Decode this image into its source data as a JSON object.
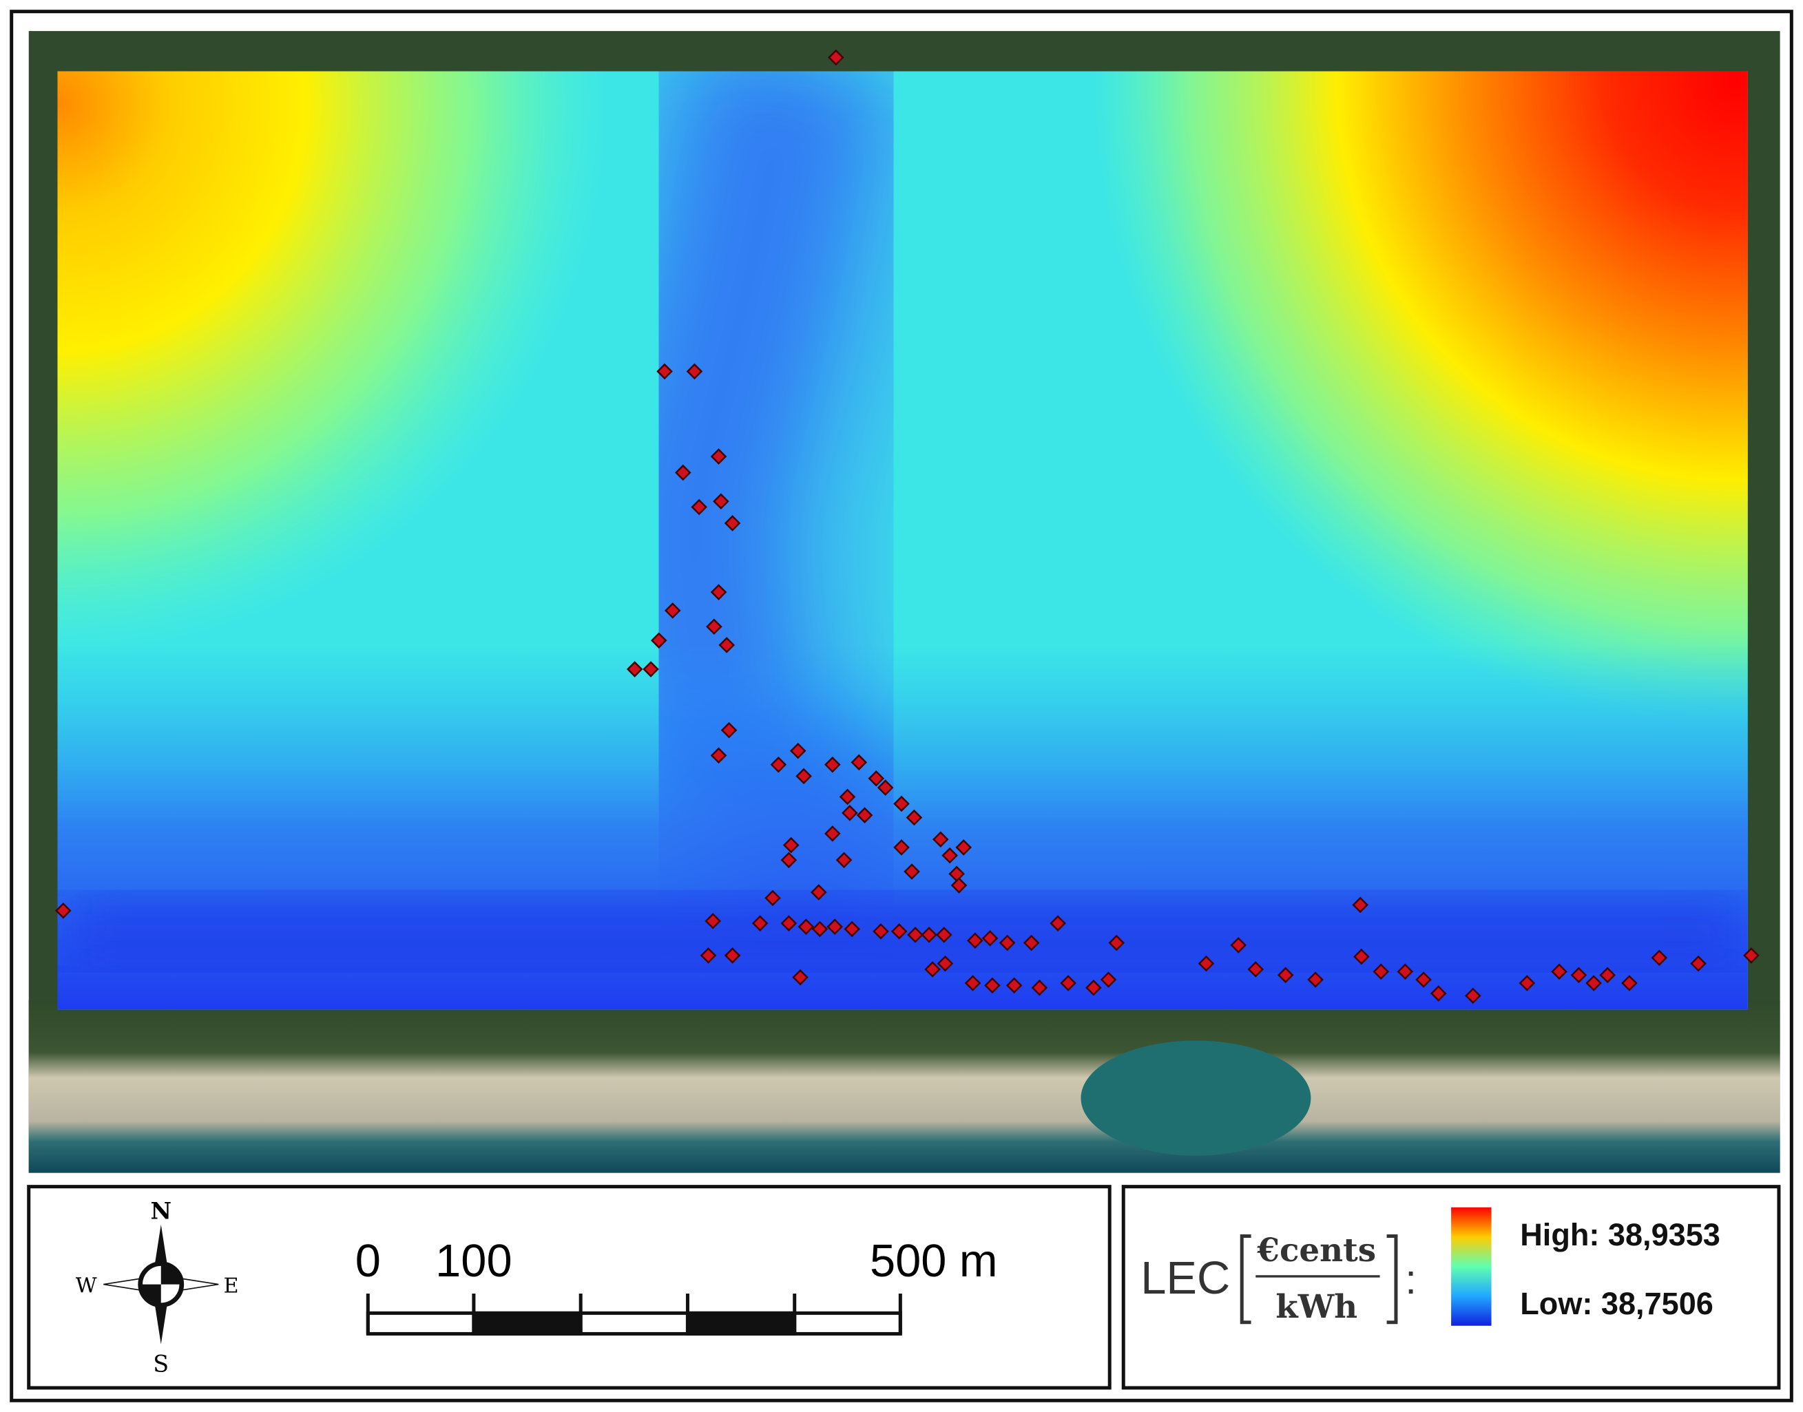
{
  "compass": {
    "north": "N",
    "south": "S",
    "west": "W",
    "east": "E"
  },
  "scale_bar": {
    "labels": [
      "0",
      "100",
      "500 m"
    ]
  },
  "legend": {
    "title": "LEC",
    "unit_numerator": "€cents",
    "unit_denominator": "kWh",
    "separator": ":",
    "high": "High: 38,9353",
    "low": "Low: 38,7506"
  }
}
